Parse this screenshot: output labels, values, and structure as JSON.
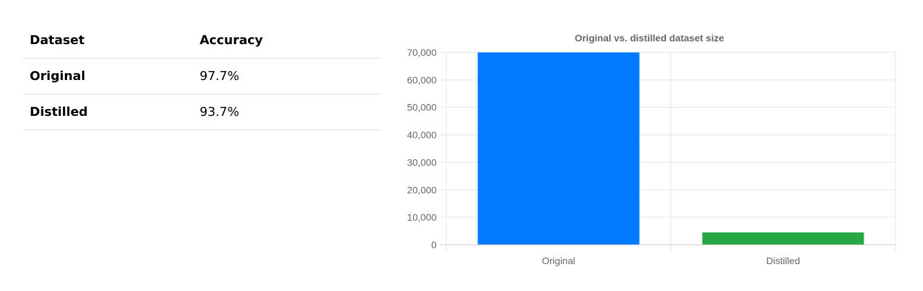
{
  "table": {
    "headers": [
      "Dataset",
      "Accuracy"
    ],
    "rows": [
      {
        "dataset": "Original",
        "accuracy": "97.7%"
      },
      {
        "dataset": "Distilled",
        "accuracy": "93.7%"
      }
    ]
  },
  "chart_data": {
    "type": "bar",
    "title": "Original vs. distilled dataset size",
    "categories": [
      "Original",
      "Distilled"
    ],
    "values": [
      70000,
      4500
    ],
    "colors": [
      "#007bff",
      "#28a745"
    ],
    "ylim": [
      0,
      70000
    ],
    "yticks": [
      0,
      10000,
      20000,
      30000,
      40000,
      50000,
      60000,
      70000
    ],
    "ytick_labels": [
      "0",
      "10,000",
      "20,000",
      "30,000",
      "40,000",
      "50,000",
      "60,000",
      "70,000"
    ],
    "grid": true,
    "legend": "none"
  }
}
